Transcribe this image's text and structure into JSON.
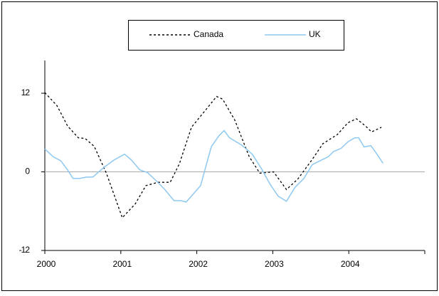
{
  "chart_data": {
    "type": "line",
    "xlim": [
      2000,
      2005
    ],
    "xticks": [
      2000,
      2001,
      2002,
      2003,
      2004
    ],
    "ylim": [
      -12,
      17
    ],
    "yticks": [
      -12,
      0,
      12
    ],
    "series": [
      {
        "name": "Canada",
        "color": "#000000",
        "dashed": true,
        "x": [
          2000,
          2000.16,
          2000.3,
          2000.44,
          2000.53,
          2000.65,
          2000.81,
          2001.02,
          2001.19,
          2001.33,
          2001.49,
          2001.65,
          2001.77,
          2001.93,
          2002.12,
          2002.26,
          2002.34,
          2002.5,
          2002.69,
          2002.83,
          2003.01,
          2003.18,
          2003.33,
          2003.52,
          2003.66,
          2003.85,
          2003.99,
          2004.1,
          2004.22,
          2004.3,
          2004.43
        ],
        "values": [
          12.1,
          10.1,
          7.0,
          5.2,
          5.1,
          3.9,
          -0.2,
          -7.0,
          -4.9,
          -2.1,
          -1.6,
          -1.6,
          1.2,
          6.8,
          9.5,
          11.5,
          11.1,
          7.9,
          2.3,
          -0.2,
          0,
          -2.7,
          -1.1,
          1.9,
          4.3,
          5.7,
          7.5,
          8.1,
          7.0,
          6.1,
          6.8
        ]
      },
      {
        "name": "UK",
        "color": "#8ec8f0",
        "dashed": false,
        "x": [
          2000,
          2000.11,
          2000.21,
          2000.3,
          2000.37,
          2000.46,
          2000.55,
          2000.63,
          2000.77,
          2000.91,
          2001.05,
          2001.14,
          2001.25,
          2001.35,
          2001.46,
          2001.58,
          2001.7,
          2001.79,
          2001.86,
          2001.93,
          2002.05,
          2002.19,
          2002.29,
          2002.36,
          2002.43,
          2002.59,
          2002.73,
          2002.85,
          2002.96,
          2003.07,
          2003.18,
          2003.29,
          2003.41,
          2003.52,
          2003.64,
          2003.73,
          2003.8,
          2003.9,
          2003.99,
          2004.08,
          2004.13,
          2004.2,
          2004.29,
          2004.36,
          2004.45
        ],
        "values": [
          3.5,
          2.3,
          1.7,
          0.3,
          -1.0,
          -1.0,
          -0.8,
          -0.8,
          0.6,
          1.8,
          2.7,
          1.8,
          0.3,
          -0.1,
          -1.3,
          -2.7,
          -4.4,
          -4.4,
          -4.6,
          -3.7,
          -2.1,
          3.8,
          5.5,
          6.3,
          5.2,
          4.1,
          2.7,
          0.5,
          -1.8,
          -3.7,
          -4.5,
          -2.4,
          -1.0,
          1.1,
          1.8,
          2.3,
          3.1,
          3.6,
          4.6,
          5.2,
          5.2,
          3.8,
          4.0,
          2.9,
          1.3
        ]
      }
    ]
  }
}
